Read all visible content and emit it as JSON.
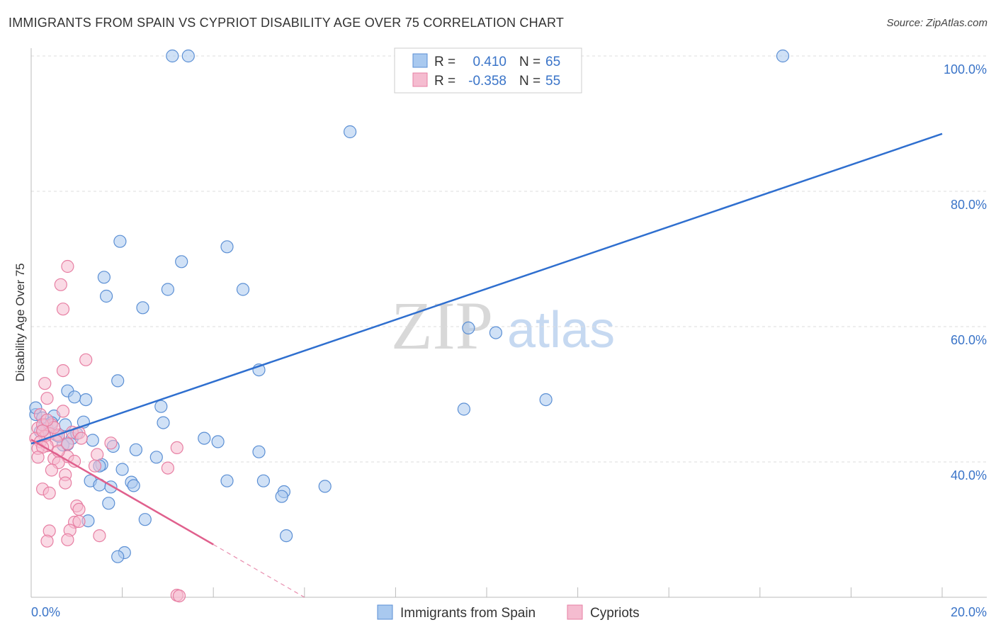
{
  "header": {
    "title": "IMMIGRANTS FROM SPAIN VS CYPRIOT DISABILITY AGE OVER 75 CORRELATION CHART",
    "source": "Source: ZipAtlas.com"
  },
  "watermark": {
    "zip": "ZIP",
    "atlas": "atlas"
  },
  "colors": {
    "blue_fill": "#a9c9ef",
    "blue_stroke": "#5b8fd4",
    "blue_line": "#2f6fcf",
    "pink_fill": "#f5bcd0",
    "pink_stroke": "#e77fa3",
    "pink_line": "#e0608d",
    "grid": "#dddddd",
    "tick_text": "#3a74c8"
  },
  "legend": {
    "rows": [
      {
        "r_label": "R =",
        "r_value": "0.410",
        "n_label": "N =",
        "n_value": "65"
      },
      {
        "r_label": "R =",
        "r_value": "-0.358",
        "n_label": "N =",
        "n_value": "55"
      }
    ]
  },
  "chart_data": {
    "type": "scatter",
    "title": "IMMIGRANTS FROM SPAIN VS CYPRIOT DISABILITY AGE OVER 75 CORRELATION CHART",
    "xlabel": "",
    "ylabel": "Disability Age Over 75",
    "xlim": [
      0,
      20
    ],
    "ylim": [
      20,
      102
    ],
    "x_tick_labels": [
      "0.0%",
      "20.0%"
    ],
    "y_ticks": [
      40,
      60,
      80,
      100
    ],
    "y_tick_labels": [
      "40.0%",
      "60.0%",
      "80.0%",
      "100.0%"
    ],
    "grid": true,
    "series": [
      {
        "name": "Immigrants from Spain",
        "color": "#a9c9ef",
        "points": [
          [
            3.1,
            100
          ],
          [
            3.45,
            100
          ],
          [
            16.5,
            100
          ],
          [
            7.0,
            88.8
          ],
          [
            1.95,
            72.6
          ],
          [
            4.3,
            71.8
          ],
          [
            3.3,
            69.6
          ],
          [
            1.6,
            67.3
          ],
          [
            3.0,
            65.5
          ],
          [
            4.65,
            65.5
          ],
          [
            1.65,
            64.5
          ],
          [
            2.45,
            62.8
          ],
          [
            9.6,
            59.8
          ],
          [
            10.2,
            59.1
          ],
          [
            5.0,
            53.6
          ],
          [
            1.9,
            52.0
          ],
          [
            0.8,
            50.5
          ],
          [
            1.2,
            49.2
          ],
          [
            11.3,
            49.2
          ],
          [
            0.95,
            49.6
          ],
          [
            2.85,
            48.2
          ],
          [
            9.5,
            47.8
          ],
          [
            0.1,
            47.0
          ],
          [
            0.25,
            46.5
          ],
          [
            0.5,
            46.8
          ],
          [
            0.3,
            45.5
          ],
          [
            0.35,
            45.0
          ],
          [
            0.45,
            45.8
          ],
          [
            0.75,
            45.5
          ],
          [
            1.15,
            45.9
          ],
          [
            2.9,
            45.8
          ],
          [
            0.2,
            44.5
          ],
          [
            0.55,
            44.0
          ],
          [
            0.9,
            43.5
          ],
          [
            1.0,
            44.2
          ],
          [
            1.35,
            43.2
          ],
          [
            3.8,
            43.5
          ],
          [
            4.1,
            43.0
          ],
          [
            0.7,
            42.5
          ],
          [
            0.8,
            42.6
          ],
          [
            5.0,
            41.5
          ],
          [
            2.75,
            40.7
          ],
          [
            1.55,
            39.6
          ],
          [
            1.5,
            39.4
          ],
          [
            2.0,
            38.9
          ],
          [
            1.3,
            37.2
          ],
          [
            1.5,
            36.6
          ],
          [
            2.2,
            37.0
          ],
          [
            1.75,
            36.3
          ],
          [
            2.25,
            36.5
          ],
          [
            4.3,
            37.2
          ],
          [
            5.1,
            37.2
          ],
          [
            5.55,
            35.6
          ],
          [
            5.5,
            34.9
          ],
          [
            6.45,
            36.4
          ],
          [
            1.7,
            33.9
          ],
          [
            1.25,
            31.3
          ],
          [
            2.5,
            31.5
          ],
          [
            5.6,
            29.1
          ],
          [
            2.05,
            26.6
          ],
          [
            1.9,
            26.0
          ],
          [
            0.1,
            48.0
          ],
          [
            0.6,
            43.8
          ],
          [
            1.8,
            42.3
          ],
          [
            2.3,
            41.8
          ]
        ],
        "trend": [
          [
            0,
            42.7
          ],
          [
            20,
            88.5
          ]
        ]
      },
      {
        "name": "Cypriots",
        "color": "#f5bcd0",
        "points": [
          [
            0.8,
            68.9
          ],
          [
            0.65,
            66.2
          ],
          [
            0.7,
            62.6
          ],
          [
            1.2,
            55.1
          ],
          [
            0.7,
            53.5
          ],
          [
            0.3,
            51.6
          ],
          [
            0.35,
            49.4
          ],
          [
            0.7,
            47.5
          ],
          [
            0.2,
            47.0
          ],
          [
            0.45,
            45.5
          ],
          [
            0.15,
            45.0
          ],
          [
            0.25,
            45.5
          ],
          [
            0.4,
            44.2
          ],
          [
            0.6,
            44.0
          ],
          [
            0.9,
            44.4
          ],
          [
            1.05,
            44.3
          ],
          [
            0.3,
            43.8
          ],
          [
            0.1,
            43.5
          ],
          [
            0.2,
            43.0
          ],
          [
            0.55,
            43.1
          ],
          [
            0.35,
            42.4
          ],
          [
            0.15,
            42.0
          ],
          [
            0.25,
            42.2
          ],
          [
            1.75,
            42.8
          ],
          [
            3.2,
            42.1
          ],
          [
            0.8,
            40.8
          ],
          [
            1.45,
            41.1
          ],
          [
            0.15,
            40.7
          ],
          [
            0.5,
            40.5
          ],
          [
            0.6,
            39.9
          ],
          [
            0.45,
            38.8
          ],
          [
            0.75,
            38.1
          ],
          [
            3.0,
            39.1
          ],
          [
            0.75,
            36.9
          ],
          [
            1.4,
            39.4
          ],
          [
            0.25,
            36.0
          ],
          [
            0.4,
            35.4
          ],
          [
            1.0,
            33.5
          ],
          [
            1.05,
            33.0
          ],
          [
            0.95,
            31.1
          ],
          [
            1.05,
            31.2
          ],
          [
            0.4,
            29.8
          ],
          [
            0.85,
            29.9
          ],
          [
            1.5,
            29.1
          ],
          [
            0.35,
            28.3
          ],
          [
            0.8,
            28.5
          ],
          [
            3.2,
            20.3
          ],
          [
            3.25,
            20.2
          ],
          [
            0.5,
            45.1
          ],
          [
            0.25,
            44.6
          ],
          [
            0.8,
            42.7
          ],
          [
            1.1,
            43.5
          ],
          [
            0.35,
            46.2
          ],
          [
            0.6,
            41.6
          ],
          [
            0.95,
            40.1
          ]
        ],
        "trend": [
          [
            0,
            43.3
          ],
          [
            4.0,
            27.8
          ]
        ],
        "trend_dashed": [
          [
            4.0,
            27.8
          ],
          [
            6.0,
            20.0
          ]
        ]
      }
    ]
  },
  "bottom_legend": {
    "items": [
      {
        "label": "Immigrants from Spain"
      },
      {
        "label": "Cypriots"
      }
    ]
  }
}
